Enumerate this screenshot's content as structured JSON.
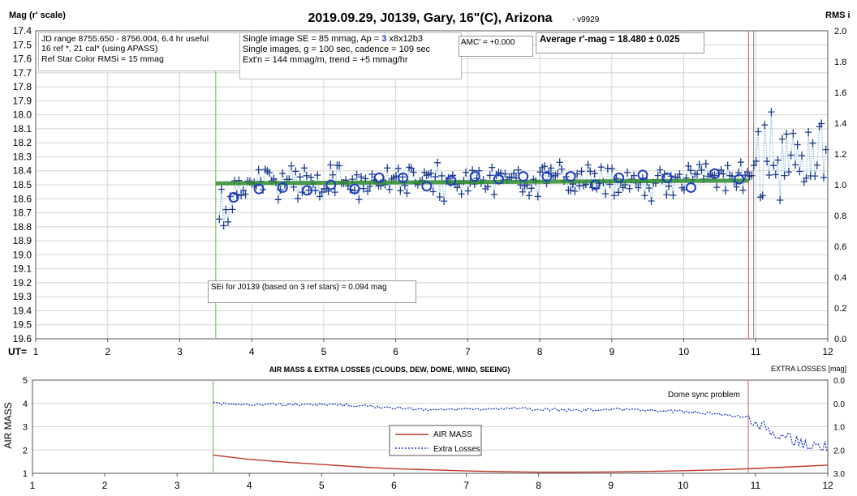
{
  "chart_data": [
    {
      "type": "scatter",
      "title": "2019.09.29, J0139, Gary, 16\"(C), Arizona",
      "version": "- v9929",
      "ylabel_left": "Mag (r' scale)",
      "ylabel_right": "RMS i",
      "xlabel_prefix": "UT=",
      "x_ticks": [
        "1",
        "2",
        "3",
        "4",
        "5",
        "6",
        "7",
        "8",
        "9",
        "10",
        "11",
        "12"
      ],
      "xlim": [
        1,
        12
      ],
      "y_ticks": [
        "17.4",
        "17.5",
        "17.6",
        "17.7",
        "17.8",
        "17.9",
        "18.0",
        "18.1",
        "18.2",
        "18.3",
        "18.4",
        "18.5",
        "18.6",
        "18.7",
        "18.8",
        "18.9",
        "19.0",
        "19.1",
        "19.2",
        "19.3",
        "19.4",
        "19.5",
        "19.6"
      ],
      "ylim": [
        17.4,
        19.6
      ],
      "y_reversed": true,
      "y2_ticks": [
        "2.0",
        "1.8",
        "1.6",
        "1.4",
        "1.2",
        "1.0",
        "0.8",
        "0.6",
        "0.4",
        "0.2",
        "0.0"
      ],
      "y2lim": [
        0,
        2
      ],
      "green_line_x": 3.5,
      "red_line_x": 10.9,
      "gray_line_x": 10.97,
      "trend": {
        "x": [
          3.5,
          10.9
        ],
        "y": [
          18.49,
          18.47
        ],
        "color": "#2e8b2e"
      },
      "binned_points": {
        "x": [
          3.75,
          4.1,
          4.43,
          4.77,
          5.1,
          5.43,
          5.77,
          6.1,
          6.43,
          6.77,
          7.1,
          7.43,
          7.77,
          8.1,
          8.43,
          8.77,
          9.1,
          9.43,
          9.77,
          10.1,
          10.43,
          10.77
        ],
        "y": [
          18.59,
          18.53,
          18.52,
          18.54,
          18.5,
          18.53,
          18.45,
          18.45,
          18.51,
          18.47,
          18.44,
          18.46,
          18.44,
          18.44,
          18.44,
          18.5,
          18.45,
          18.43,
          18.45,
          18.52,
          18.42,
          18.46
        ]
      },
      "single_series": {
        "name": "single images",
        "color": "#1f3d8c",
        "dotted_color": "#7ab0dd"
      },
      "annotations": {
        "jd": [
          "JD range 8755.650 - 8756.004, 6.4 hr useful",
          "16 ref *, 21 cal* (using APASS)",
          "Ref Star Color RMSi = 15 mmag"
        ],
        "single_pre": "Single image SE = 85 mmag, Ap = ",
        "single_ap": "3",
        "single_post": " x8x12b3",
        "single_line2": "Single images, g = 100 sec, cadence = 109 sec",
        "single_line3": "Ext'n = 144 mmag/m, trend = +5 mmag/hr",
        "amc": "AMC' = +0.000",
        "avg": "Average r'-mag =  18.480 ± 0.025",
        "sei": "SEi for J0139 (based on 3 ref stars) = 0.094 mag"
      }
    },
    {
      "type": "line",
      "title": "AIR MASS & EXTRA LOSSES (CLOUDS, DEW, DOME, WIND, SEEING)",
      "ylabel_left": "AIR MASS",
      "ylabel_right": "EXTRA LOSSES [mag]",
      "x_ticks": [
        "1",
        "2",
        "3",
        "4",
        "5",
        "6",
        "7",
        "8",
        "9",
        "10",
        "11",
        "12"
      ],
      "xlim": [
        1,
        12
      ],
      "y_ticks": [
        "5",
        "4",
        "3",
        "2",
        "1"
      ],
      "ylim": [
        1,
        5
      ],
      "y2_ticks": [
        "0.0",
        "0.0",
        "1.0",
        "2.0",
        "3.0"
      ],
      "y2lim": [
        -1,
        3
      ],
      "green_line_x": 3.5,
      "red_line_x": 10.9,
      "annotation": "Dome sync problem",
      "series": [
        {
          "name": "AIR MASS",
          "color": "#c0392b",
          "x": [
            3.5,
            4,
            4.5,
            5,
            5.5,
            6,
            6.5,
            7,
            7.5,
            8,
            8.5,
            9,
            9.5,
            10,
            10.5,
            11,
            11.5,
            12
          ],
          "y": [
            1.78,
            1.6,
            1.48,
            1.38,
            1.28,
            1.2,
            1.15,
            1.1,
            1.07,
            1.05,
            1.05,
            1.06,
            1.08,
            1.11,
            1.15,
            1.21,
            1.28,
            1.35
          ]
        },
        {
          "name": "Extra Losses",
          "color": "#1f3dbf",
          "style": "dotted",
          "x": [
            3.5,
            4,
            4.5,
            5,
            5.5,
            6,
            6.5,
            7,
            7.5,
            8,
            8.5,
            9,
            9.5,
            10,
            10.5,
            10.9,
            11.2,
            11.5,
            11.8,
            12
          ],
          "y": [
            0.0,
            0.03,
            0.04,
            0.05,
            0.1,
            0.2,
            0.28,
            0.25,
            0.22,
            0.25,
            0.3,
            0.25,
            0.3,
            0.35,
            0.45,
            0.6,
            1.2,
            1.5,
            1.9,
            1.85
          ]
        }
      ]
    }
  ]
}
